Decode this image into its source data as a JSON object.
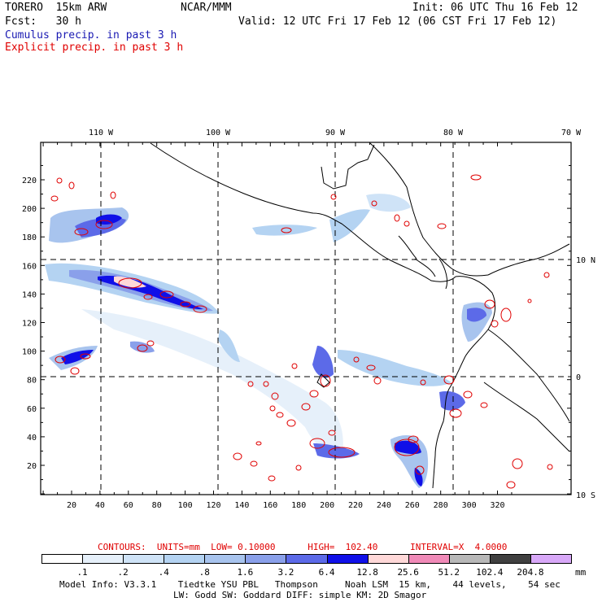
{
  "header": {
    "model": "TORERO  15km ARW",
    "org": "NCAR/MMM",
    "init": "Init: 06 UTC Thu 16 Feb 12",
    "fcst": "Fcst:   30 h",
    "valid": "Valid: 12 UTC Fri 17 Feb 12 (06 CST Fri 17 Feb 12)",
    "field_cumulus": "Cumulus precip. in past 3 h",
    "field_explicit": "Explicit precip. in past 3 h",
    "cumulus_color": "#1a1ab3",
    "explicit_color": "#e00000"
  },
  "map": {
    "lon_labels": [
      "110 W",
      "100 W",
      "90 W",
      "80 W",
      "70 W"
    ],
    "lat_labels": [
      "10 N",
      "0",
      "10 S"
    ],
    "x_ticks": [
      "20",
      "40",
      "60",
      "80",
      "100",
      "120",
      "140",
      "160",
      "180",
      "200",
      "220",
      "240",
      "260",
      "280",
      "300",
      "320"
    ],
    "y_ticks": [
      "20",
      "40",
      "60",
      "80",
      "100",
      "120",
      "140",
      "160",
      "180",
      "200",
      "220"
    ]
  },
  "contours_line": "CONTOURS:  UNITS=mm  LOW= 0.10000      HIGH=  102.40      INTERVAL=X  4.0000",
  "legend": {
    "unit": "mm",
    "labels": [
      ".1",
      ".2",
      ".4",
      ".8",
      "1.6",
      "3.2",
      "6.4",
      "12.8",
      "25.6",
      "51.2",
      "102.4",
      "204.8"
    ],
    "colors": [
      "#ffffff",
      "#e6f0fa",
      "#cfe3f7",
      "#b4d3f2",
      "#a8c4ee",
      "#8aa0ea",
      "#5c6ae8",
      "#1010e8",
      "#ffd8d8",
      "#f08ab8",
      "#b8b8b8",
      "#404040",
      "#d8a8f8"
    ]
  },
  "footer": {
    "line1": "Model Info: V3.3.1    Tiedtke YSU PBL   Thompson     Noah LSM  15 km,    44 levels,    54 sec",
    "line2": "LW: Godd SW: Goddard DIFF: simple KM: 2D Smagor"
  }
}
